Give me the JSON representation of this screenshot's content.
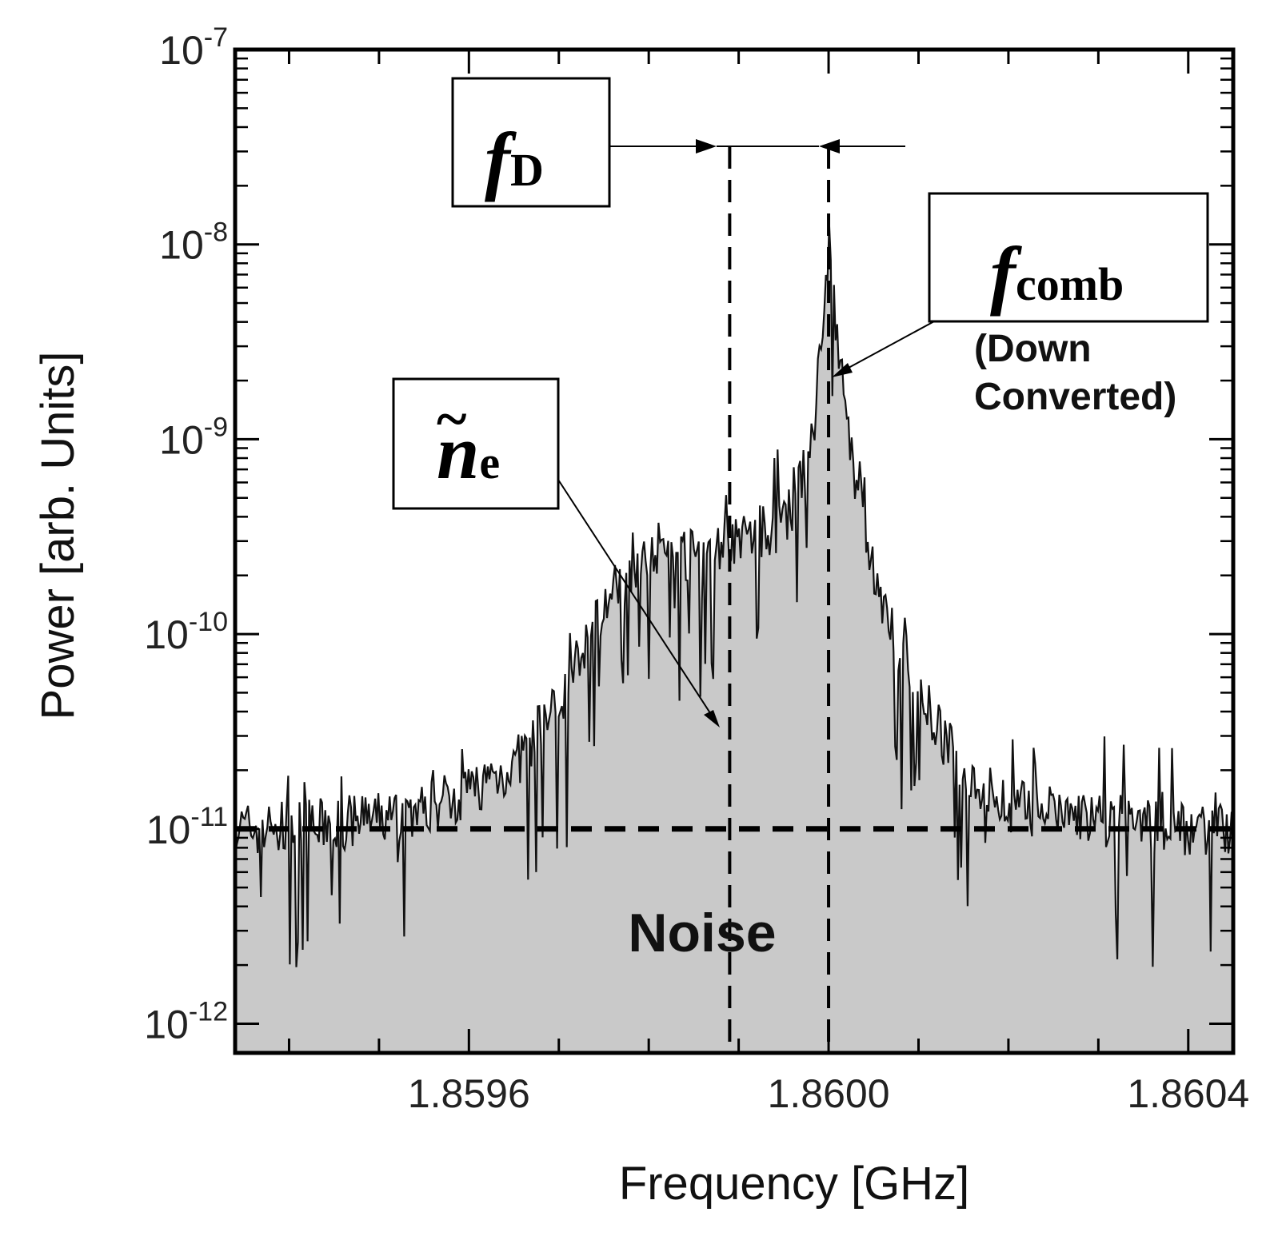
{
  "chart_data": {
    "type": "area",
    "title": "",
    "xlabel": "Frequency [GHz]",
    "ylabel": "Power [arb. Units]",
    "xlim": [
      1.85934,
      1.86045
    ],
    "ylim_log10": [
      -12.15,
      -7
    ],
    "x_ticks": [
      {
        "value": 1.8596,
        "label": "1.8596"
      },
      {
        "value": 1.86,
        "label": "1.8600"
      },
      {
        "value": 1.8604,
        "label": "1.8604"
      }
    ],
    "y_ticks": [
      {
        "exp": -7,
        "base": "10",
        "sup": "-7"
      },
      {
        "exp": -8,
        "base": "10",
        "sup": "-8"
      },
      {
        "exp": -9,
        "base": "10",
        "sup": "-9"
      },
      {
        "exp": -10,
        "base": "10",
        "sup": "-10"
      },
      {
        "exp": -11,
        "base": "10",
        "sup": "-11"
      },
      {
        "exp": -12,
        "base": "10",
        "sup": "-12"
      }
    ],
    "series": [
      {
        "name": "spectrum",
        "x": [
          1.85934,
          1.8594,
          1.8595,
          1.85955,
          1.8596,
          1.85965,
          1.8597,
          1.85975,
          1.8598,
          1.85985,
          1.8599,
          1.85995,
          1.85998,
          1.86,
          1.86003,
          1.86006,
          1.8601,
          1.86015,
          1.8602,
          1.8603,
          1.8604,
          1.86045
        ],
        "log10_power": [
          -11.0,
          -11.0,
          -10.95,
          -10.9,
          -10.8,
          -10.68,
          -10.35,
          -9.85,
          -9.55,
          -9.6,
          -9.5,
          -9.45,
          -9.1,
          -8.1,
          -9.3,
          -9.85,
          -10.3,
          -10.72,
          -10.88,
          -10.95,
          -11.0,
          -11.0
        ]
      }
    ],
    "noise_level_log10": -11.0,
    "vlines": [
      {
        "name": "doppler",
        "x": 1.85989
      },
      {
        "name": "comb",
        "x": 1.86
      }
    ],
    "colors": {
      "fill": "#c9c9c9",
      "trace": "#111111",
      "axes": "#000000"
    },
    "annotations": {
      "fd_main": "f",
      "fd_sub": "D",
      "comb_main": "f",
      "comb_sub": "comb",
      "comb_note_1": "(Down",
      "comb_note_2": "Converted)",
      "ne_tilde": "~",
      "ne_main": "n",
      "ne_sub": "e",
      "noise": "Noise"
    }
  }
}
